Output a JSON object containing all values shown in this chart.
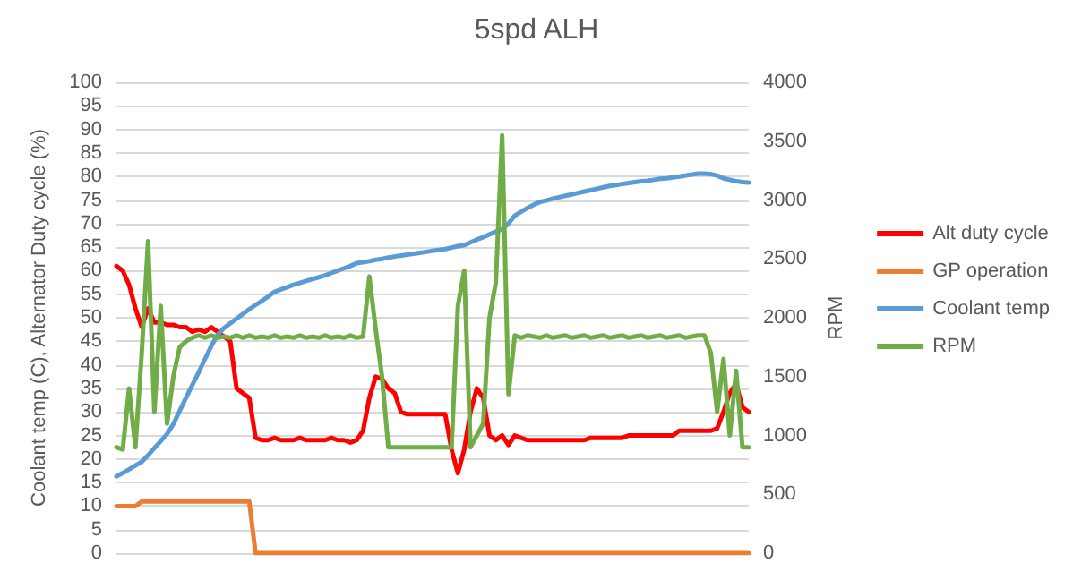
{
  "chart_data": {
    "type": "line",
    "title": "5spd ALH",
    "ylabel": "Coolant temp (C), Alternator Duty cycle (%)",
    "y2label": "RPM",
    "categories": [
      null,
      null,
      null,
      null,
      null,
      null,
      null,
      null,
      null,
      null,
      null,
      null,
      null,
      null,
      null,
      null,
      null,
      null,
      null,
      null,
      null,
      null,
      null,
      null,
      null,
      null,
      null,
      null,
      null,
      null,
      null,
      null,
      null,
      null,
      null,
      null,
      null,
      null,
      null,
      null,
      null,
      null,
      null,
      null,
      null,
      null,
      null,
      null,
      null,
      null,
      null,
      null,
      null,
      null,
      null,
      null,
      null,
      null,
      null,
      null,
      null,
      null,
      null,
      null,
      null,
      null,
      null,
      null,
      null,
      null,
      null,
      null,
      null,
      null,
      null,
      null,
      null,
      null,
      null,
      null,
      null,
      null,
      null,
      null,
      null,
      null,
      null,
      null,
      null,
      null,
      null,
      null,
      null,
      null,
      null,
      null,
      null,
      null,
      null,
      null,
      null
    ],
    "series": [
      {
        "name": "Alt duty cycle",
        "color": "#ff0000",
        "values": [
          61,
          60,
          57,
          52,
          48,
          52,
          49,
          49,
          48.5,
          48.5,
          48,
          48,
          47,
          47.5,
          47,
          48,
          47,
          46,
          45,
          35,
          34,
          33,
          24.5,
          24,
          24,
          24.5,
          24,
          24,
          24,
          24.5,
          24,
          24,
          24,
          24,
          24.5,
          24,
          24,
          23.5,
          24,
          26,
          33,
          37.5,
          37,
          35,
          34,
          30,
          29.5,
          29.5,
          29.5,
          29.5,
          29.5,
          29.5,
          29.5,
          22,
          17,
          22,
          30,
          35,
          33,
          25,
          24,
          25,
          23,
          25,
          24.5,
          24,
          24,
          24,
          24,
          24,
          24,
          24,
          24,
          24,
          24,
          24.5,
          24.5,
          24.5,
          24.5,
          24.5,
          24.5,
          25,
          25,
          25,
          25,
          25,
          25,
          25,
          25,
          26,
          26,
          26,
          26,
          26,
          26,
          26.5,
          30,
          34,
          36,
          31,
          30
        ]
      },
      {
        "name": "GP operation",
        "color": "#ed7d31",
        "values": [
          10,
          10,
          10,
          10,
          11,
          11,
          11,
          11,
          11,
          11,
          11,
          11,
          11,
          11,
          11,
          11,
          11,
          11,
          11,
          11,
          11,
          11,
          0,
          0,
          0,
          0,
          0,
          0,
          0,
          0,
          0,
          0,
          0,
          0,
          0,
          0,
          0,
          0,
          0,
          0,
          0,
          0,
          0,
          0,
          0,
          0,
          0,
          0,
          0,
          0,
          0,
          0,
          0,
          0,
          0,
          0,
          0,
          0,
          0,
          0,
          0,
          0,
          0,
          0,
          0,
          0,
          0,
          0,
          0,
          0,
          0,
          0,
          0,
          0,
          0,
          0,
          0,
          0,
          0,
          0,
          0,
          0,
          0,
          0,
          0,
          0,
          0,
          0,
          0,
          0,
          0,
          0,
          0,
          0,
          0,
          0,
          0,
          0,
          0,
          0,
          0
        ]
      },
      {
        "name": "Coolant temp",
        "color": "#5b9bd5",
        "values": [
          16.3,
          17,
          17.8,
          18.6,
          19.4,
          20.8,
          22.3,
          23.8,
          25.3,
          27.4,
          30.2,
          33,
          35.7,
          38.4,
          41.2,
          44,
          46.4,
          47.8,
          48.8,
          49.8,
          50.8,
          51.8,
          52.7,
          53.6,
          54.5,
          55.5,
          56,
          56.5,
          57,
          57.4,
          57.8,
          58.2,
          58.6,
          59,
          59.5,
          60,
          60.5,
          61,
          61.6,
          61.8,
          62,
          62.3,
          62.5,
          62.8,
          63,
          63.2,
          63.4,
          63.6,
          63.8,
          64,
          64.2,
          64.4,
          64.6,
          64.9,
          65.2,
          65.4,
          66,
          66.6,
          67.1,
          67.7,
          68.3,
          68.8,
          70,
          71.7,
          72.5,
          73.3,
          74,
          74.6,
          74.9,
          75.3,
          75.6,
          75.9,
          76.2,
          76.5,
          76.8,
          77.1,
          77.4,
          77.7,
          78,
          78.2,
          78.4,
          78.6,
          78.8,
          79,
          79.1,
          79.3,
          79.5,
          79.6,
          79.8,
          80,
          80.2,
          80.4,
          80.6,
          80.6,
          80.5,
          80.2,
          79.6,
          79.3,
          79,
          78.8,
          78.7
        ]
      },
      {
        "name": "RPM",
        "color": "#70ad47",
        "axis": "y2",
        "values": [
          900,
          880,
          1400,
          900,
          1700,
          2650,
          1200,
          2100,
          1100,
          1500,
          1750,
          1800,
          1830,
          1850,
          1830,
          1850,
          1830,
          1840,
          1830,
          1850,
          1830,
          1850,
          1830,
          1840,
          1830,
          1850,
          1830,
          1840,
          1830,
          1850,
          1830,
          1840,
          1830,
          1850,
          1830,
          1840,
          1830,
          1850,
          1830,
          1840,
          2350,
          1900,
          1500,
          900,
          900,
          900,
          900,
          900,
          900,
          900,
          900,
          900,
          900,
          900,
          2100,
          2400,
          900,
          1000,
          1100,
          2000,
          2300,
          3550,
          1350,
          1850,
          1830,
          1850,
          1840,
          1830,
          1850,
          1830,
          1840,
          1850,
          1830,
          1840,
          1850,
          1830,
          1840,
          1850,
          1830,
          1840,
          1850,
          1830,
          1840,
          1850,
          1830,
          1840,
          1850,
          1830,
          1840,
          1850,
          1830,
          1840,
          1850,
          1850,
          1700,
          1200,
          1650,
          1000,
          1550,
          900,
          900
        ]
      }
    ],
    "ylim": [
      0,
      100
    ],
    "yticks": [
      0,
      5,
      10,
      15,
      20,
      25,
      30,
      35,
      40,
      45,
      50,
      55,
      60,
      65,
      70,
      75,
      80,
      85,
      90,
      95,
      100
    ],
    "y2lim": [
      0,
      4000
    ],
    "y2ticks": [
      0,
      500,
      1000,
      1500,
      2000,
      2500,
      3000,
      3500,
      4000
    ],
    "grid": "y",
    "legend": "right",
    "tick_labels": "y"
  }
}
